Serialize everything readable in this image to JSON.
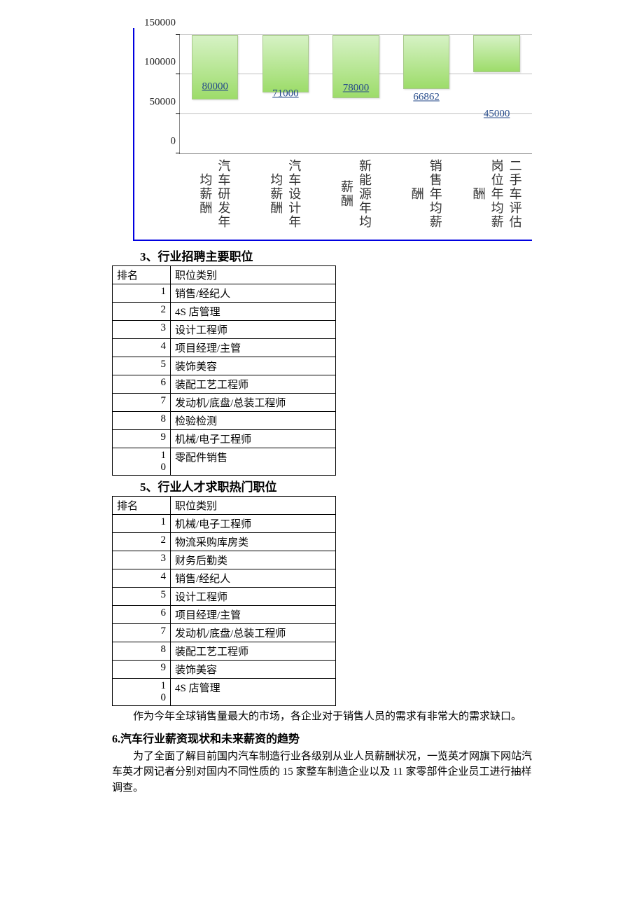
{
  "chart": {
    "type": "bar",
    "y_ticks": [
      0,
      50000,
      100000,
      150000
    ],
    "y_max": 150000,
    "categories": [
      "汽车研发年均薪酬",
      "汽车设计年均薪酬",
      "新能源年均薪酬",
      "销售年均薪酬",
      "二手车评估岗位年均薪酬"
    ],
    "values": [
      80000,
      71000,
      78000,
      66862,
      45000
    ],
    "bar_fill_top": "#d6f2c5",
    "bar_fill_bottom": "#9ddc6a",
    "value_label_color": "#254a8a",
    "axis_color": "#888888",
    "grid_color": "#c0c0c0",
    "frame_color": "#0000e0",
    "x_label_fontsize": 18,
    "value_fontsize": 15
  },
  "section3": {
    "title": "3、行业招聘主要职位",
    "header_rank": "排名",
    "header_cat": "职位类别",
    "rows": [
      {
        "rank": "1",
        "cat": "销售/经纪人"
      },
      {
        "rank": "2",
        "cat": "4S 店管理"
      },
      {
        "rank": "3",
        "cat": "设计工程师"
      },
      {
        "rank": "4",
        "cat": "项目经理/主管"
      },
      {
        "rank": "5",
        "cat": "装饰美容"
      },
      {
        "rank": "6",
        "cat": "装配工艺工程师"
      },
      {
        "rank": "7",
        "cat": "发动机/底盘/总装工程师"
      },
      {
        "rank": "8",
        "cat": "检验检测"
      },
      {
        "rank": "9",
        "cat": "机械/电子工程师"
      },
      {
        "rank": "10",
        "cat": "零配件销售"
      }
    ]
  },
  "section5": {
    "title": "5、行业人才求职热门职位",
    "header_rank": "排名",
    "header_cat": "职位类别",
    "rows": [
      {
        "rank": "1",
        "cat": "机械/电子工程师"
      },
      {
        "rank": "2",
        "cat": "物流采购库房类"
      },
      {
        "rank": "3",
        "cat": "财务后勤类"
      },
      {
        "rank": "4",
        "cat": "销售/经纪人"
      },
      {
        "rank": "5",
        "cat": "设计工程师"
      },
      {
        "rank": "6",
        "cat": "项目经理/主管"
      },
      {
        "rank": "7",
        "cat": "发动机/底盘/总装工程师"
      },
      {
        "rank": "8",
        "cat": "装配工艺工程师"
      },
      {
        "rank": "9",
        "cat": "装饰美容"
      },
      {
        "rank": "10",
        "cat": "4S 店管理"
      }
    ]
  },
  "para1": "作为今年全球销售量最大的市场，各企业对于销售人员的需求有非常大的需求缺口。",
  "section6": {
    "title": "6.汽车行业薪资现状和未来薪资的趋势",
    "para": "为了全面了解目前国内汽车制造行业各级别从业人员薪酬状况，一览英才网旗下网站汽车英才网记者分别对国内不同性质的 15 家整车制造企业以及 11 家零部件企业员工进行抽样调查。"
  }
}
